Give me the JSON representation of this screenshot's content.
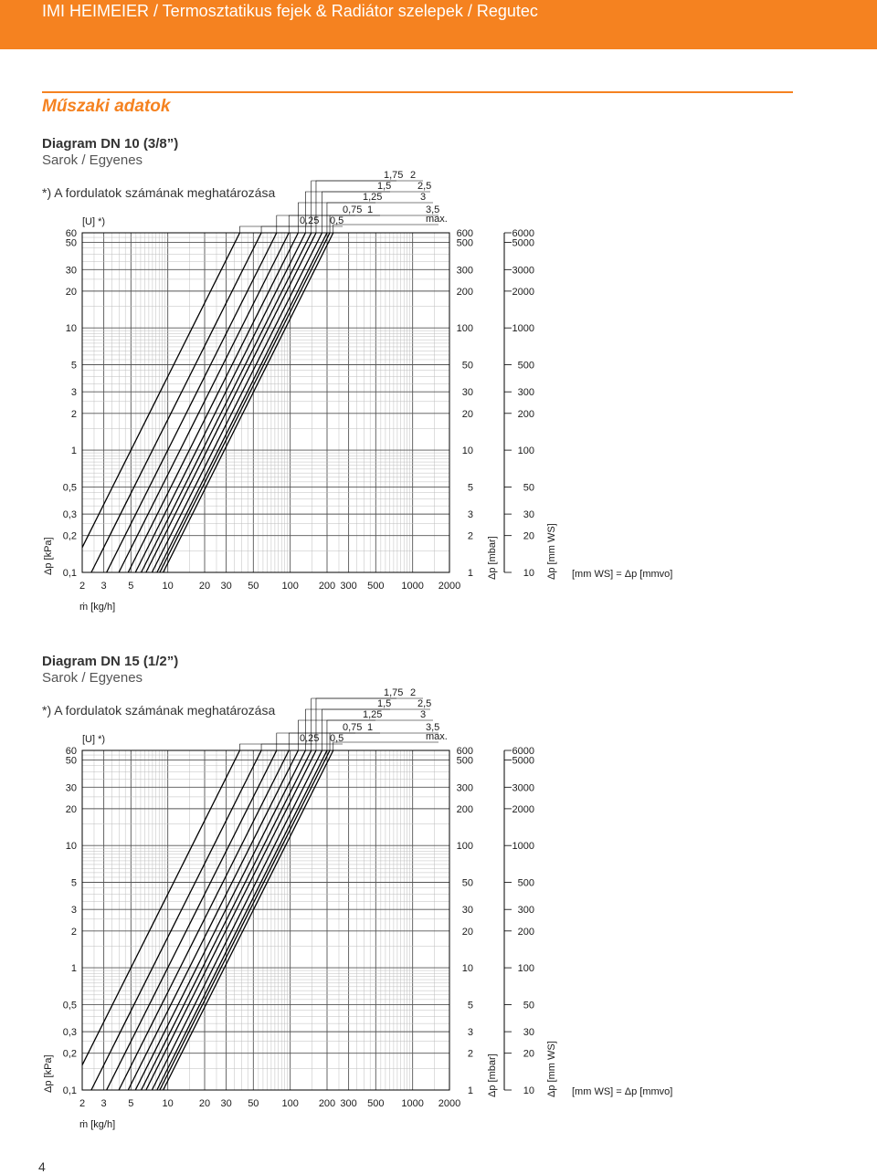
{
  "header": {
    "title": "IMI HEIMEIER / Termosztatikus fejek & Radiátor szelepek / Regutec"
  },
  "section_title": "Műszaki adatok",
  "diagrams": [
    {
      "title": "Diagram DN 10 (3/8”)",
      "subtitle": "Sarok / Egyenes",
      "note": "*) A fordulatok számának meghatározása"
    },
    {
      "title": "Diagram DN 15 (1/2”)",
      "subtitle": "Sarok / Egyenes",
      "note": "*) A fordulatok számának meghatározása"
    }
  ],
  "page_number": "4",
  "colors": {
    "accent": "#f58220",
    "line": "#000000",
    "grid": "#9a9a9a"
  },
  "chart_data": [
    {
      "type": "line",
      "scale": "log-log",
      "grid": true,
      "xlabel": "ṁ [kg/h]",
      "ylabel_left": "Δp [kPa]",
      "ylabel_mid": "Δp [mbar]",
      "ylabel_right": "Δp [mm WS]",
      "note_right": "[mm WS] = Δp [mmvo]",
      "setting_header": "[U] *)",
      "xlim": [
        2,
        2000
      ],
      "ylim": [
        0.1,
        60
      ],
      "x_ticks": [
        "2",
        "3",
        "5",
        "10",
        "20",
        "30",
        "50",
        "100",
        "200",
        "300",
        "500",
        "1000",
        "2000"
      ],
      "y_ticks_kpa": [
        "60",
        "50",
        "30",
        "20",
        "10",
        "5",
        "3",
        "2",
        "1",
        "0,5",
        "0,3",
        "0,2",
        "0,1"
      ],
      "y_ticks_mbar": [
        "600",
        "500",
        "300",
        "200",
        "100",
        "50",
        "30",
        "20",
        "10",
        "5",
        "3",
        "2",
        "1"
      ],
      "y_ticks_mmws": [
        "6000",
        "5000",
        "3000",
        "2000",
        "1000",
        "500",
        "300",
        "200",
        "100",
        "50",
        "30",
        "20",
        "10"
      ],
      "setting_labels": [
        "0,25",
        "0,5",
        "0,75",
        "1",
        "1,25",
        "1,5",
        "1,75",
        "2",
        "2,5",
        "3",
        "3,5",
        "max."
      ],
      "series_kv": [
        0.05,
        0.075,
        0.1,
        0.126,
        0.15,
        0.172,
        0.192,
        0.21,
        0.235,
        0.258,
        0.272,
        0.29
      ]
    },
    {
      "type": "line",
      "scale": "log-log",
      "grid": true,
      "xlabel": "ṁ [kg/h]",
      "ylabel_left": "Δp [kPa]",
      "ylabel_mid": "Δp [mbar]",
      "ylabel_right": "Δp [mm WS]",
      "note_right": "[mm WS] = Δp [mmvo]",
      "setting_header": "[U] *)",
      "xlim": [
        2,
        2000
      ],
      "ylim": [
        0.1,
        60
      ],
      "x_ticks": [
        "2",
        "3",
        "5",
        "10",
        "20",
        "30",
        "50",
        "100",
        "200",
        "300",
        "500",
        "1000",
        "2000"
      ],
      "y_ticks_kpa": [
        "60",
        "50",
        "30",
        "20",
        "10",
        "5",
        "3",
        "2",
        "1",
        "0,5",
        "0,3",
        "0,2",
        "0,1"
      ],
      "y_ticks_mbar": [
        "600",
        "500",
        "300",
        "200",
        "100",
        "50",
        "30",
        "20",
        "10",
        "5",
        "3",
        "2",
        "1"
      ],
      "y_ticks_mmws": [
        "6000",
        "5000",
        "3000",
        "2000",
        "1000",
        "500",
        "300",
        "200",
        "100",
        "50",
        "30",
        "20",
        "10"
      ],
      "setting_labels": [
        "0,25",
        "0,5",
        "0,75",
        "1",
        "1,25",
        "1,5",
        "1,75",
        "2",
        "2,5",
        "3",
        "3,5",
        "max."
      ],
      "series_kv": [
        0.05,
        0.075,
        0.1,
        0.126,
        0.15,
        0.172,
        0.192,
        0.21,
        0.235,
        0.258,
        0.272,
        0.29
      ]
    }
  ]
}
